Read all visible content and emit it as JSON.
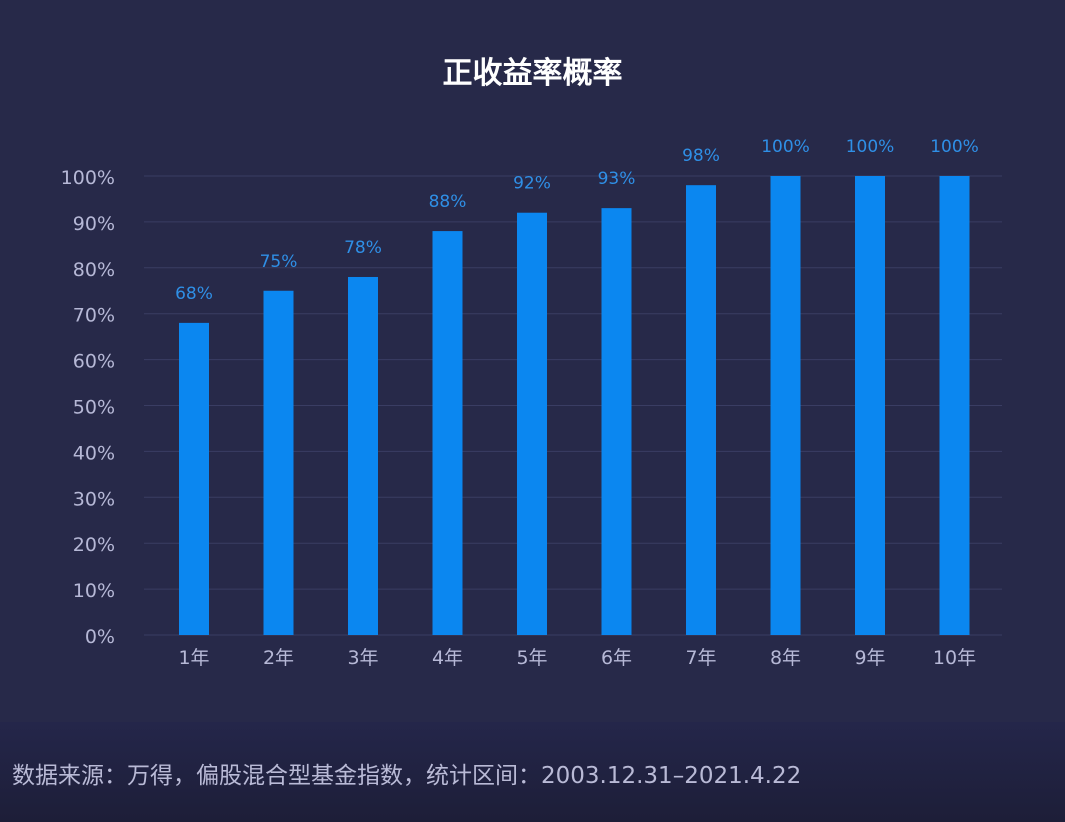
{
  "chart_data": {
    "type": "bar",
    "title": "正收益率概率",
    "categories": [
      "1年",
      "2年",
      "3年",
      "4年",
      "5年",
      "6年",
      "7年",
      "8年",
      "9年",
      "10年"
    ],
    "values": [
      68,
      75,
      78,
      88,
      92,
      93,
      98,
      100,
      100,
      100
    ],
    "data_labels": [
      "68%",
      "75%",
      "78%",
      "88%",
      "92%",
      "93%",
      "98%",
      "100%",
      "100%",
      "100%"
    ],
    "ylim": [
      0,
      100
    ],
    "yticks": [
      "0%",
      "10%",
      "20%",
      "30%",
      "40%",
      "50%",
      "60%",
      "70%",
      "80%",
      "90%",
      "100%"
    ],
    "xlabel": "",
    "ylabel": "",
    "grid": true,
    "colors": {
      "bar": "#0b87f0",
      "label": "#2f8fe6",
      "tick": "#b6b8d6",
      "grid": "#3a3d63",
      "background": "#272949"
    }
  },
  "footer": {
    "source": "数据来源：万得，偏股混合型基金指数，统计区间：2003.12.31–2021.4.22"
  }
}
